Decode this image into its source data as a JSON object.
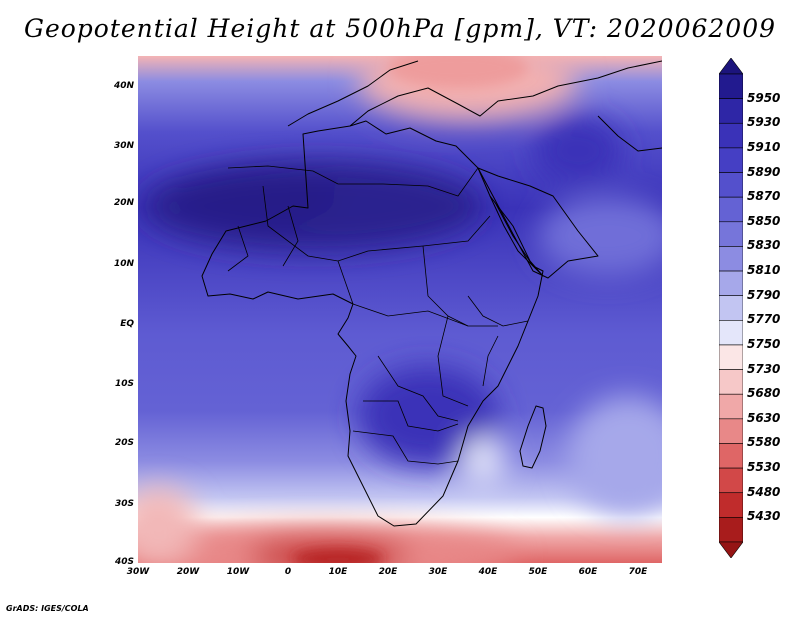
{
  "title": "Geopotential Height at 500hPa [gpm], VT: 2020062009",
  "credit": "GrADS: IGES/COLA",
  "lat_labels": [
    "40N",
    "30N",
    "20N",
    "10N",
    "EQ",
    "10S",
    "20S",
    "30S",
    "40S"
  ],
  "lon_labels": [
    "30W",
    "20W",
    "10W",
    "0",
    "10E",
    "20E",
    "30E",
    "40E",
    "50E",
    "60E",
    "70E"
  ],
  "colorbar": {
    "levels": [
      "5950",
      "5930",
      "5910",
      "5890",
      "5870",
      "5850",
      "5830",
      "5810",
      "5790",
      "5770",
      "5750",
      "5730",
      "5680",
      "5630",
      "5580",
      "5530",
      "5480",
      "5430"
    ],
    "colors": [
      "#221a8f",
      "#2e26a6",
      "#3a32b8",
      "#453fc4",
      "#5450cc",
      "#6462d4",
      "#7675da",
      "#8c8ce2",
      "#a6a8ea",
      "#c2c5f2",
      "#e4e6fa",
      "#fbe6e6",
      "#f6c8c8",
      "#f0a8a8",
      "#e88888",
      "#df6666",
      "#d24848",
      "#c02c2c",
      "#a81c1c"
    ],
    "top_color": "#1c147c",
    "bottom_color": "#951414"
  }
}
